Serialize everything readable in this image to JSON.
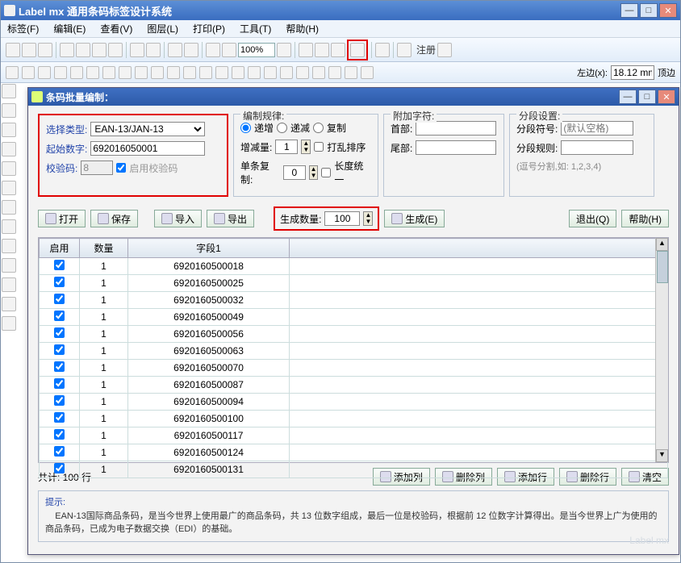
{
  "outer": {
    "title": "Label mx 通用条码标签设计系统",
    "menus": [
      "标签(F)",
      "编辑(E)",
      "查看(V)",
      "图层(L)",
      "打印(P)",
      "工具(T)",
      "帮助(H)"
    ],
    "zoom": "100%",
    "register": "注册",
    "coord_label": "左边(x):",
    "coord_value": "18.12 mm",
    "coord_tail": "顶边"
  },
  "dialog": {
    "title": "条码批量编制：",
    "selectGroup": {
      "typeLabel": "选择类型:",
      "typeValue": "EAN-13/JAN-13",
      "startLabel": "起始数字:",
      "startValue": "692016050001",
      "checkLabel": "校验码:",
      "checkValue": "8",
      "enableCheck": "启用校验码"
    },
    "ruleGroup": {
      "title": "编制规律:",
      "r1": "递增",
      "r2": "递减",
      "r3": "复制",
      "incLabel": "增减量:",
      "incVal": "1",
      "shuffle": "打乱排序",
      "copyLabel": "单条复制:",
      "copyVal": "0",
      "uniform": "长度统一"
    },
    "appendGroup": {
      "title": "附加字符:",
      "head": "首部:",
      "headVal": "",
      "tail": "尾部:",
      "tailVal": ""
    },
    "splitGroup": {
      "title": "分段设置:",
      "sepLabel": "分段符号:",
      "sepPlaceholder": "(默认空格)",
      "ruleLabel": "分段规则:",
      "hint": "(逗号分割,如: 1,2,3,4)"
    },
    "actions": {
      "open": "打开",
      "save": "保存",
      "import": "导入",
      "export": "导出",
      "genLabel": "生成数量:",
      "genVal": "100",
      "gen": "生成(E)",
      "exit": "退出(Q)",
      "help": "帮助(H)"
    },
    "table": {
      "headers": [
        "启用",
        "数量",
        "字段1"
      ],
      "rows": [
        [
          "1",
          "6920160500018"
        ],
        [
          "1",
          "6920160500025"
        ],
        [
          "1",
          "6920160500032"
        ],
        [
          "1",
          "6920160500049"
        ],
        [
          "1",
          "6920160500056"
        ],
        [
          "1",
          "6920160500063"
        ],
        [
          "1",
          "6920160500070"
        ],
        [
          "1",
          "6920160500087"
        ],
        [
          "1",
          "6920160500094"
        ],
        [
          "1",
          "6920160500100"
        ],
        [
          "1",
          "6920160500117"
        ],
        [
          "1",
          "6920160500124"
        ],
        [
          "1",
          "6920160500131"
        ]
      ],
      "count": "共计: 100 行"
    },
    "footer": {
      "addCol": "添加列",
      "delCol": "删除列",
      "addRow": "添加行",
      "delRow": "删除行",
      "clear": "清空"
    },
    "hint": {
      "label": "提示:",
      "text": "EAN-13国际商品条码，是当今世界上使用最广的商品条码，共 13 位数字组成，最后一位是校验码，根据前 12 位数字计算得出。是当今世界上广为使用的商品条码，已成为电子数据交换（EDI）的基础。"
    },
    "watermark": "Label mx"
  }
}
